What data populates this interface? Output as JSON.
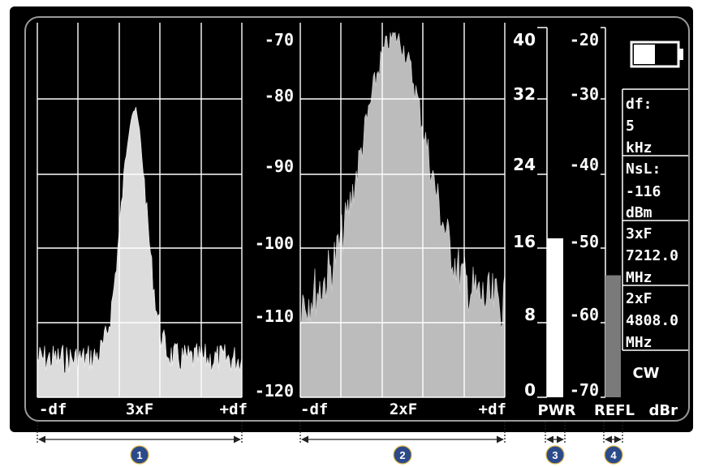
{
  "spectrum_3xf": {
    "scale": [
      "-70",
      "-80",
      "-90",
      "-100",
      "-110",
      "-120"
    ],
    "x_labels": [
      "-df",
      "3xF",
      "+df"
    ]
  },
  "spectrum_2xf": {
    "x_labels": [
      "-df",
      "2xF",
      "+df"
    ]
  },
  "pwr_meter": {
    "scale": [
      "40",
      "32",
      "24",
      "16",
      "8",
      "0"
    ],
    "label": "PWR",
    "level": 0.43
  },
  "refl_meter": {
    "scale": [
      "-20",
      "-30",
      "-40",
      "-50",
      "-60",
      "-70"
    ],
    "label": "REFL",
    "level": 0.33
  },
  "unit": "dBr",
  "info": {
    "df_label": "df:",
    "df_value": "5",
    "df_unit": "kHz",
    "nsl_label": "NsL:",
    "nsl_value": "-116",
    "nsl_unit": "dBm",
    "f3_label": "3xF",
    "f3_value": "7212.0",
    "f3_unit": "MHz",
    "f2_label": "2xF",
    "f2_value": "4808.0",
    "f2_unit": "MHz",
    "mode": "CW"
  },
  "callouts": [
    "1",
    "2",
    "3",
    "4"
  ],
  "colors": {
    "background": "#000000",
    "trace_3xf": "#e0e0e0",
    "trace_2xf": "#bdbdbd",
    "pwr_bar": "#ffffff",
    "refl_bar": "#7a7a7a",
    "callout": "#2b4a8a"
  },
  "icons": {
    "battery": "battery-icon"
  }
}
